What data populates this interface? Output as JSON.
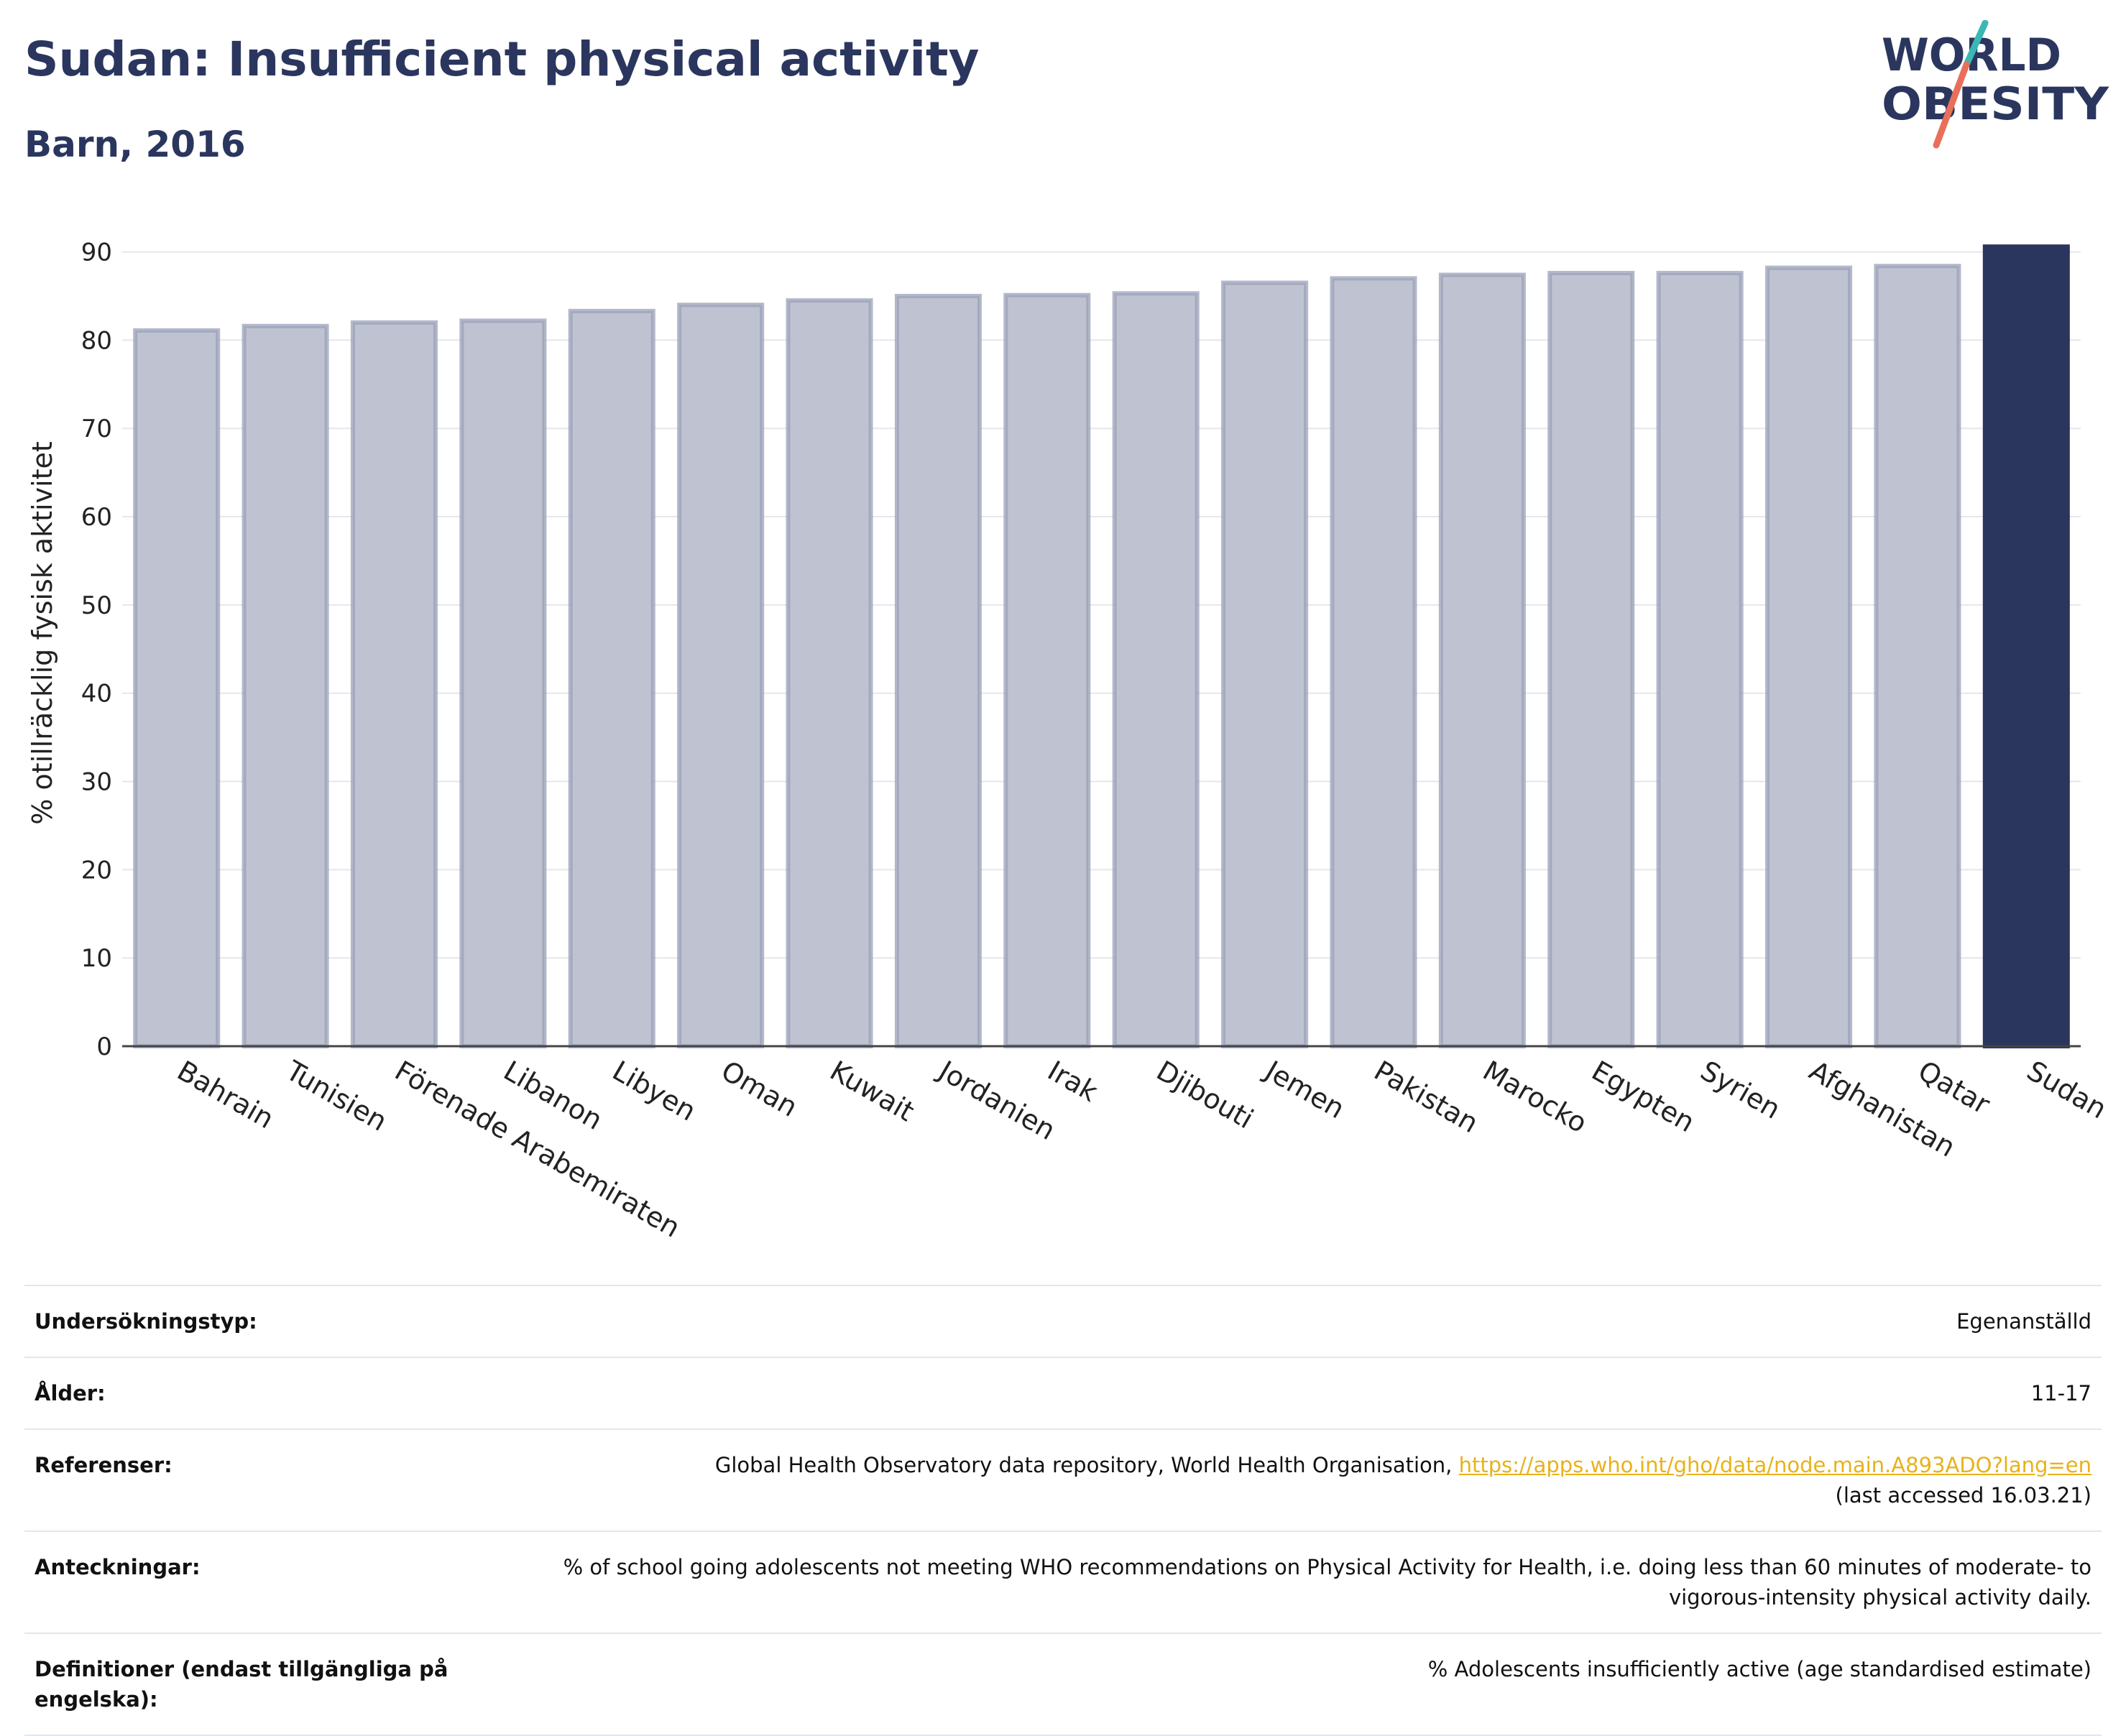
{
  "header": {
    "title": "Sudan: Insufficient physical activity",
    "subtitle": "Barn, 2016"
  },
  "logo": {
    "line1": "WORLD",
    "line2": "OBESITY",
    "colors": {
      "text": "#2b365f",
      "teal": "#3bb8b4",
      "coral": "#e8705a"
    }
  },
  "colors": {
    "bar_fill": "#bfc2d0",
    "bar_stroke": "#9aa0b8",
    "highlight": "#2b365f",
    "grid": "#e6e7ec",
    "axis": "#444444"
  },
  "chart_data": {
    "type": "bar",
    "title": "Sudan: Insufficient physical activity",
    "subtitle": "Barn, 2016",
    "ylabel": "% otillräcklig fysisk aktivitet",
    "xlabel": "",
    "ylim": [
      0,
      92
    ],
    "yticks": [
      0,
      10,
      20,
      30,
      40,
      50,
      60,
      70,
      80,
      90
    ],
    "grid": true,
    "highlight": "Sudan",
    "categories": [
      "Bahrain",
      "Tunisien",
      "Förenade Arabemiraten",
      "Libanon",
      "Libyen",
      "Oman",
      "Kuwait",
      "Jordanien",
      "Irak",
      "Djibouti",
      "Jemen",
      "Pakistan",
      "Marocko",
      "Egypten",
      "Syrien",
      "Afghanistan",
      "Qatar",
      "Sudan"
    ],
    "values": [
      81.1,
      81.6,
      82.0,
      82.2,
      83.3,
      84.0,
      84.5,
      85.0,
      85.1,
      85.3,
      86.5,
      87.0,
      87.4,
      87.6,
      87.6,
      88.2,
      88.4,
      90.6
    ]
  },
  "meta": [
    {
      "key": "Undersökningstyp:",
      "value": "Egenanställd"
    },
    {
      "key": "Ålder:",
      "value": "11-17"
    },
    {
      "key": "Referenser:",
      "value": "Global Health Observatory data repository, World Health Organisation, ",
      "link": "https://apps.who.int/gho/data/node.main.A893ADO?lang=en",
      "value2": "(last accessed 16.03.21)"
    },
    {
      "key": "Anteckningar:",
      "value": "% of school going adolescents not meeting WHO recommendations on Physical Activity for Health, i.e. doing less than 60 minutes of moderate- to vigorous-intensity physical activity daily."
    },
    {
      "key": "Definitioner (endast tillgängliga på engelska):",
      "value": "% Adolescents insufficiently active (age standardised estimate)"
    }
  ]
}
